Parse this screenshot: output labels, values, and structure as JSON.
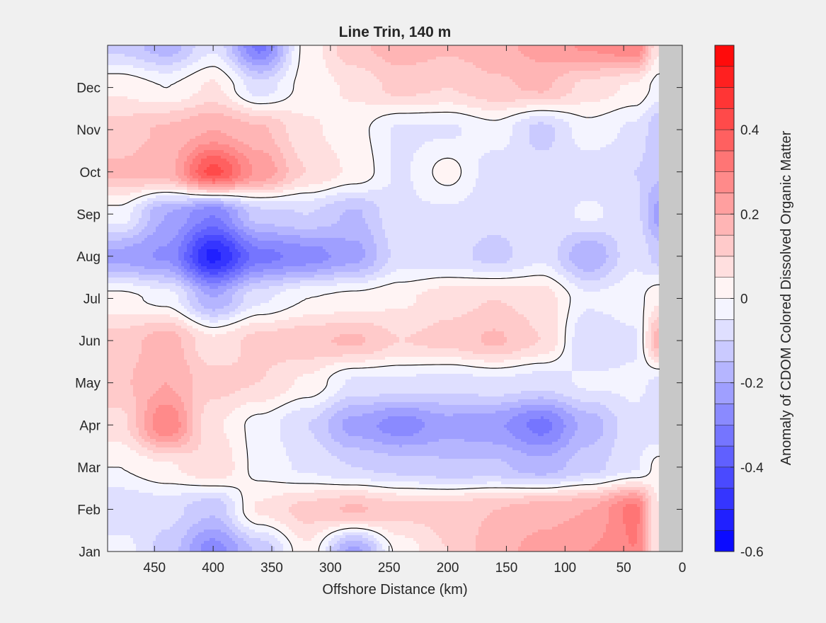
{
  "chart_data": {
    "type": "heatmap",
    "title": "Line Trin, 140 m",
    "xlabel": "Offshore Distance (km)",
    "ylabel": "",
    "xlim": [
      490,
      0
    ],
    "x_reversed": true,
    "x_ticks": [
      450,
      400,
      350,
      300,
      250,
      200,
      150,
      100,
      50,
      0
    ],
    "y_tick_labels": [
      "Jan",
      "Feb",
      "Mar",
      "Apr",
      "May",
      "Jun",
      "Jul",
      "Aug",
      "Sep",
      "Oct",
      "Nov",
      "Dec"
    ],
    "colorbar": {
      "label": "Anomaly of CDOM Colored Dissolved Organic Matter",
      "range": [
        -0.6,
        0.6
      ],
      "tick_values": [
        -0.6,
        -0.4,
        -0.2,
        0,
        0.2,
        0.4
      ],
      "tick_labels": [
        "-0.6",
        "-0.4",
        "-0.2",
        "0",
        "0.2",
        "0.4"
      ],
      "levels": 24,
      "low_color": "#0000ff",
      "mid_color": "#ffffff",
      "high_color": "#ff0000"
    },
    "no_data_region_km": [
      0,
      20
    ],
    "no_data_color": "#c8c8c8",
    "contour_line": "zero anomaly (black)",
    "grid": "x:[480,440,400,360,320,280,240,200,160,120,80,40,20]; y: months Jan..Dec + end",
    "values": [
      [
        -0.02,
        -0.12,
        -0.28,
        -0.14,
        0.04,
        -0.22,
        0.02,
        0.1,
        0.18,
        0.22,
        0.25,
        0.3,
        0.05
      ],
      [
        -0.1,
        -0.08,
        -0.14,
        0.06,
        0.12,
        0.16,
        0.12,
        0.12,
        0.15,
        0.18,
        0.2,
        0.32,
        0.05
      ],
      [
        0.0,
        0.04,
        0.1,
        -0.02,
        -0.06,
        -0.1,
        -0.12,
        -0.14,
        -0.14,
        -0.18,
        -0.12,
        -0.06,
        0.02
      ],
      [
        0.08,
        0.3,
        0.06,
        -0.02,
        -0.1,
        -0.22,
        -0.28,
        -0.22,
        -0.24,
        -0.32,
        -0.18,
        -0.06,
        -0.1
      ],
      [
        0.14,
        0.2,
        0.12,
        0.1,
        0.04,
        -0.06,
        -0.06,
        -0.08,
        -0.06,
        -0.08,
        -0.04,
        -0.04,
        -0.06
      ],
      [
        0.12,
        0.18,
        0.06,
        0.12,
        0.14,
        0.16,
        0.1,
        0.12,
        0.16,
        0.1,
        -0.1,
        -0.06,
        0.18
      ],
      [
        0.02,
        -0.02,
        -0.2,
        -0.06,
        0.0,
        0.02,
        0.04,
        0.08,
        0.1,
        0.08,
        -0.04,
        -0.02,
        0.04
      ],
      [
        -0.22,
        -0.26,
        -0.52,
        -0.32,
        -0.28,
        -0.22,
        -0.08,
        -0.08,
        -0.12,
        -0.06,
        -0.2,
        -0.06,
        -0.12
      ],
      [
        -0.02,
        -0.2,
        -0.3,
        -0.12,
        -0.1,
        -0.16,
        -0.06,
        -0.06,
        -0.08,
        -0.08,
        -0.04,
        -0.08,
        -0.22
      ],
      [
        0.16,
        0.18,
        0.42,
        0.24,
        0.1,
        0.04,
        -0.06,
        0.02,
        -0.08,
        -0.08,
        -0.08,
        -0.1,
        -0.14
      ],
      [
        0.12,
        0.16,
        0.2,
        0.16,
        0.06,
        0.02,
        -0.06,
        -0.06,
        -0.02,
        -0.12,
        -0.02,
        -0.06,
        -0.14
      ],
      [
        0.04,
        0.0,
        0.06,
        -0.08,
        0.02,
        0.06,
        0.12,
        0.1,
        0.14,
        0.16,
        0.08,
        0.04,
        -0.02
      ],
      [
        -0.12,
        -0.18,
        -0.06,
        -0.32,
        0.02,
        0.14,
        0.18,
        0.16,
        0.18,
        0.22,
        0.26,
        0.3,
        0.06
      ]
    ]
  }
}
